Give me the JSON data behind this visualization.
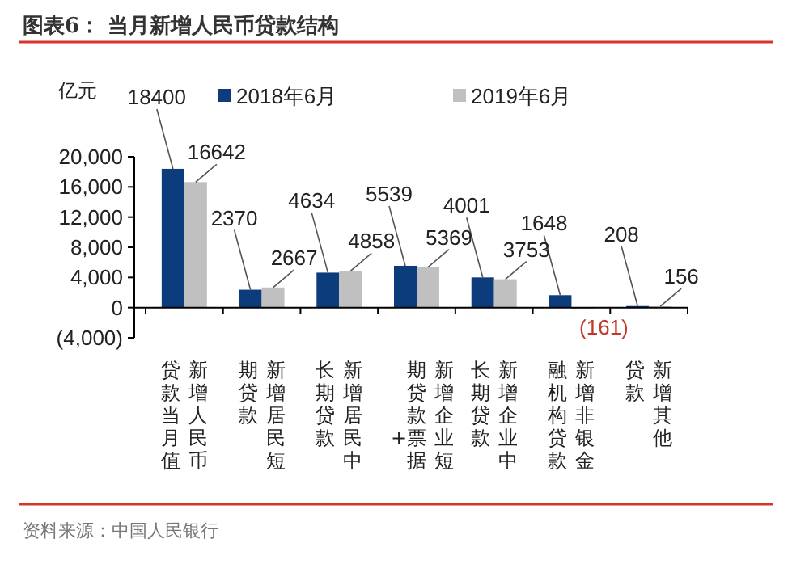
{
  "chart_data": {
    "type": "bar",
    "title": "图表6：  当月新增人民币贷款结构",
    "ylabel": "亿元",
    "categories": [
      "新增人民币贷款当月值",
      "新增居民短期贷款",
      "新增居民中长期贷款",
      "新增企业短期贷款+票据",
      "新增企业中长期贷款",
      "新增非银金融机构贷款",
      "新增其他贷款"
    ],
    "series": [
      {
        "name": "2018年6月",
        "color": "#0c3c7c",
        "values": [
          18400,
          2370,
          4634,
          5539,
          4001,
          1648,
          208
        ],
        "value_labels": [
          "18400",
          "2370",
          "4634",
          "5539",
          "4001",
          "1648",
          "208"
        ]
      },
      {
        "name": "2019年6月",
        "color": "#c0c0c0",
        "values": [
          16642,
          2667,
          4858,
          5369,
          3753,
          -161,
          156
        ],
        "value_labels": [
          "16642",
          "2667",
          "4858",
          "5369",
          "3753",
          "(161)",
          "156"
        ]
      }
    ],
    "ylim": [
      -4000,
      20000
    ],
    "yticks": [
      {
        "value": -4000,
        "label": "(4,000)"
      },
      0,
      {
        "value": 4000,
        "label": "4,000"
      },
      {
        "value": 8000,
        "label": "8,000"
      },
      {
        "value": 12000,
        "label": "12,000"
      },
      {
        "value": 16000,
        "label": "16,000"
      },
      {
        "value": 20000,
        "label": "20,000"
      }
    ],
    "legend": "top",
    "annotations": [
      "资料来源：中国人民银行"
    ]
  }
}
